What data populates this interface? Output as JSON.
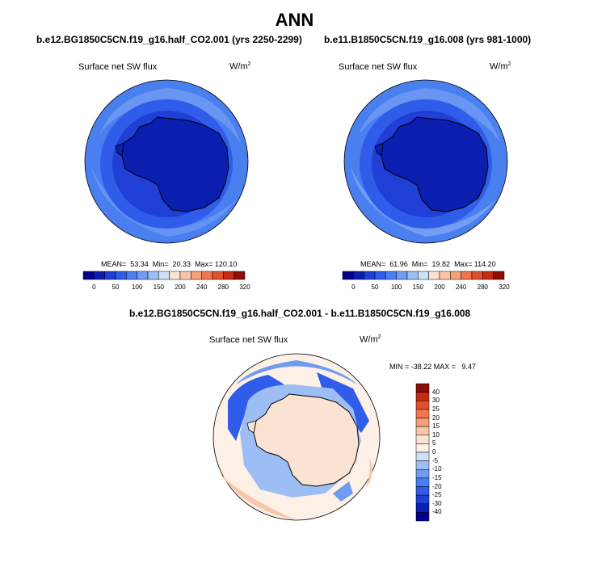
{
  "figure": {
    "title": "ANN",
    "diff_title": "b.e12.BG1850C5CN.f19_g16.half_CO2.001 - b.e11.B1850C5CN.f19_g16.008"
  },
  "panels": [
    {
      "case_title": "b.e12.BG1850C5CN.f19_g16.half_CO2.001 (yrs 2250-2299)",
      "variable": "Surface net SW flux",
      "units": "W/m",
      "units_exp": "2",
      "stats": "MEAN=  53.34  Min=  20.33  Max= 120.10"
    },
    {
      "case_title": "b.e11.B1850C5CN.f19_g16.008 (yrs 981-1000)",
      "variable": "Surface net SW flux",
      "units": "W/m",
      "units_exp": "2",
      "stats": "MEAN=  61.96  Min=  19.82  Max= 114.20"
    }
  ],
  "diff_panel": {
    "variable": "Surface net SW flux",
    "units": "W/m",
    "units_exp": "2",
    "stats": "MIN = -38.22 MAX =   9.47"
  },
  "colorbar_abs": {
    "labels": [
      "0",
      "50",
      "100",
      "150",
      "200",
      "240",
      "280",
      "320"
    ],
    "colors": [
      "#00008c",
      "#0a1fb0",
      "#1f3fd6",
      "#2f5ce8",
      "#4a7ff0",
      "#6f9cf2",
      "#9dbdf5",
      "#cfe0f9",
      "#fbe3d4",
      "#f9c6a9",
      "#f59f7b",
      "#ef764f",
      "#e1502d",
      "#c42c14",
      "#8c0e05"
    ]
  },
  "colorbar_diff": {
    "labels": [
      "40",
      "30",
      "25",
      "20",
      "15",
      "10",
      "5",
      "0",
      "-5",
      "-10",
      "-15",
      "-20",
      "-25",
      "-30",
      "-40"
    ],
    "colors": [
      "#8c0e05",
      "#c42c14",
      "#e1502d",
      "#ef764f",
      "#f59f7b",
      "#f9c6a9",
      "#fbe3d4",
      "#fdf0e6",
      "#cfe0f9",
      "#9dbdf5",
      "#6f9cf2",
      "#4a7ff0",
      "#2f5ce8",
      "#1f3fd6",
      "#0a1fb0",
      "#00008c"
    ]
  }
}
